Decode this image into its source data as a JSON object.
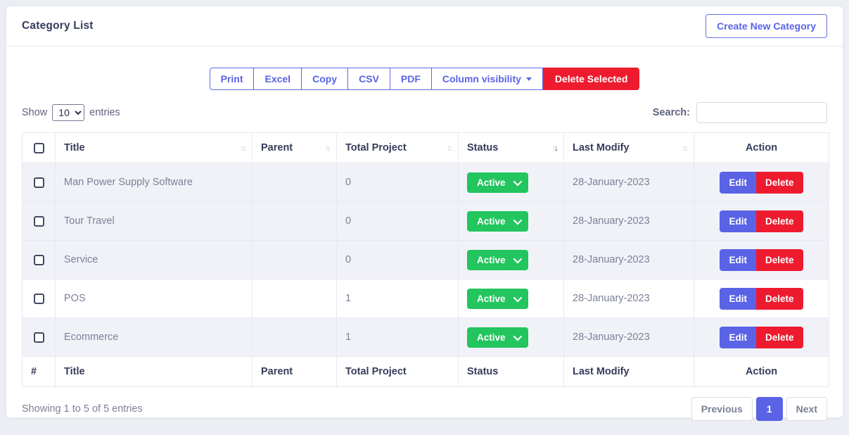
{
  "header": {
    "title": "Category List",
    "create_button_label": "Create New Category"
  },
  "toolbar": {
    "export_buttons": [
      "Print",
      "Excel",
      "Copy",
      "CSV",
      "PDF"
    ],
    "column_visibility_label": "Column visibility",
    "delete_selected_label": "Delete Selected"
  },
  "controls": {
    "show_label": "Show",
    "entries_label": "entries",
    "page_size_selected": "10",
    "search_label": "Search:",
    "search_value": ""
  },
  "table": {
    "columns": [
      {
        "label": "",
        "sortable": false,
        "sorted": ""
      },
      {
        "label": "Title",
        "sortable": true,
        "sorted": ""
      },
      {
        "label": "Parent",
        "sortable": true,
        "sorted": ""
      },
      {
        "label": "Total Project",
        "sortable": true,
        "sorted": ""
      },
      {
        "label": "Status",
        "sortable": true,
        "sorted": "desc"
      },
      {
        "label": "Last Modify",
        "sortable": true,
        "sorted": ""
      },
      {
        "label": "Action",
        "sortable": false,
        "sorted": ""
      }
    ],
    "footer_columns": [
      "#",
      "Title",
      "Parent",
      "Total Project",
      "Status",
      "Last Modify",
      "Action"
    ],
    "rows": [
      {
        "title": "Man Power Supply Software",
        "parent": "",
        "total_project": "0",
        "status": "Active",
        "last_modify": "28-January-2023"
      },
      {
        "title": "Tour Travel",
        "parent": "",
        "total_project": "0",
        "status": "Active",
        "last_modify": "28-January-2023"
      },
      {
        "title": "Service",
        "parent": "",
        "total_project": "0",
        "status": "Active",
        "last_modify": "28-January-2023"
      },
      {
        "title": "POS",
        "parent": "",
        "total_project": "1",
        "status": "Active",
        "last_modify": "28-January-2023"
      },
      {
        "title": "Ecommerce",
        "parent": "",
        "total_project": "1",
        "status": "Active",
        "last_modify": "28-January-2023"
      }
    ],
    "row_actions": {
      "edit": "Edit",
      "delete": "Delete"
    },
    "sort_icons": {
      "up": "↑",
      "down": "↓"
    }
  },
  "footer": {
    "showing_text": "Showing 1 to 5 of 5 entries",
    "pagination": {
      "previous": "Previous",
      "current_page": "1",
      "next": "Next"
    }
  },
  "colors": {
    "accent": "#5a63e6",
    "danger": "#ee1b2f",
    "success": "#22c55e",
    "heading_text": "#353c5a",
    "body_text": "#7c8097",
    "row_stripe": "#f1f2f8"
  }
}
